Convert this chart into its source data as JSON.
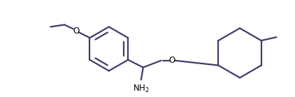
{
  "bg_color": "#ffffff",
  "line_color": "#3d3d6b",
  "line_width": 1.6,
  "text_color": "#000000",
  "nh2_label": "NH$_2$",
  "o_label": "O",
  "o2_label": "O",
  "figsize": [
    4.22,
    1.39
  ],
  "dpi": 100
}
